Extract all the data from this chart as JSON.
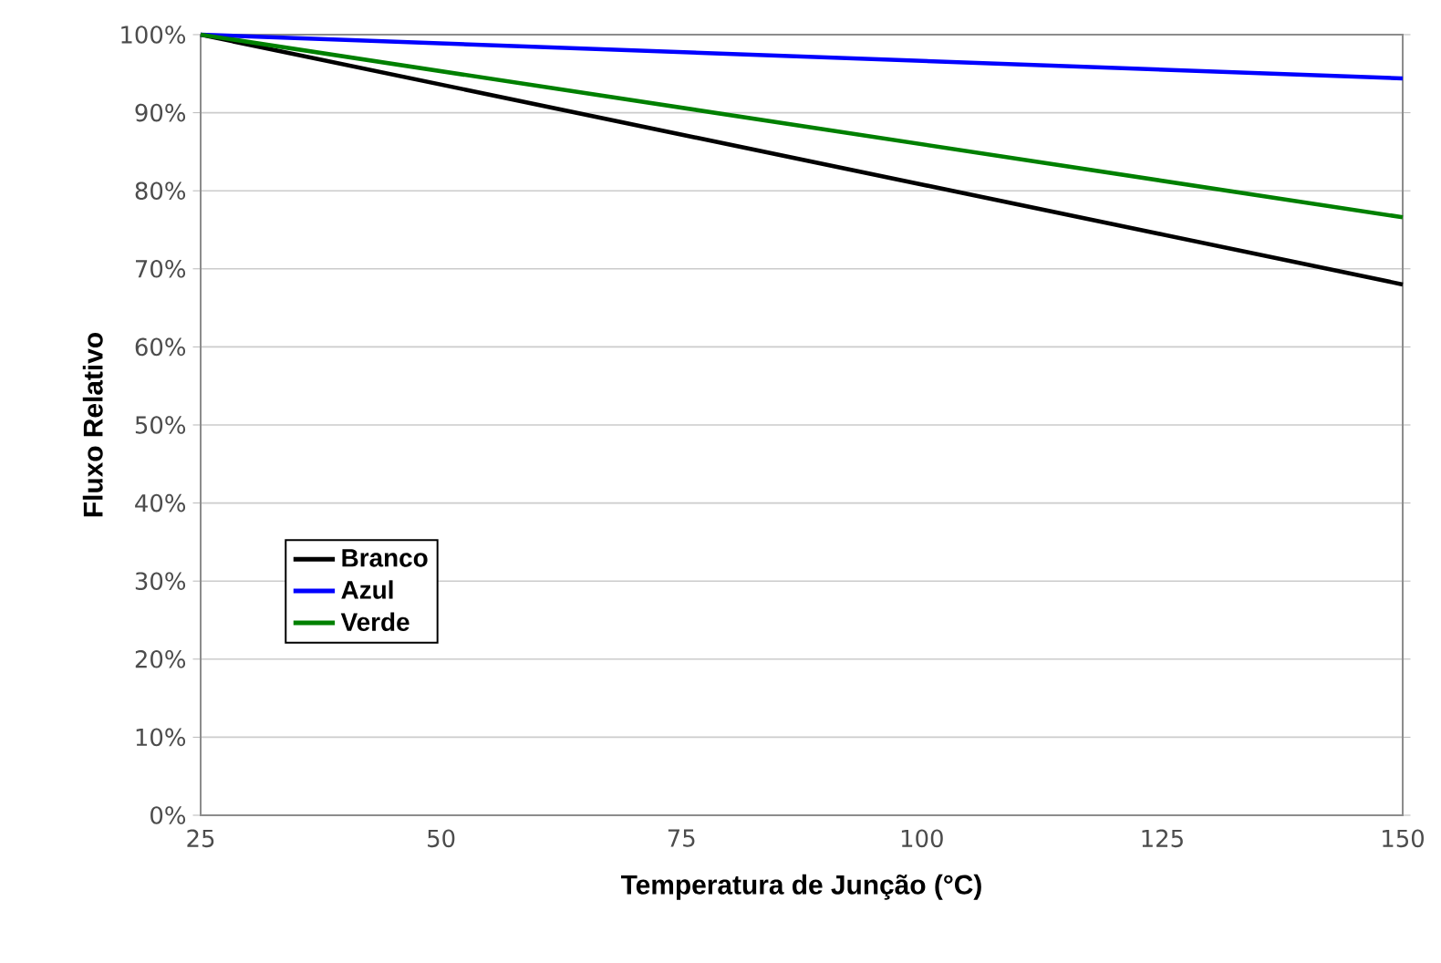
{
  "chart_data": {
    "type": "line",
    "xlabel": "Temperatura de Junção (°C)",
    "ylabel": "Fluxo Relativo",
    "x": [
      25,
      150
    ],
    "series": [
      {
        "name": "Branco",
        "color": "#000000",
        "values": [
          100,
          68
        ]
      },
      {
        "name": "Azul",
        "color": "#0000ff",
        "values": [
          100,
          94.4
        ]
      },
      {
        "name": "Verde",
        "color": "#008000",
        "values": [
          100,
          76.6
        ]
      }
    ],
    "xlim": [
      25,
      150
    ],
    "xticks": [
      25,
      50,
      75,
      100,
      125,
      150
    ],
    "ylim": [
      0,
      100
    ],
    "yticks": [
      {
        "value": 0,
        "label": "0%"
      },
      {
        "value": 10,
        "label": "10%"
      },
      {
        "value": 20,
        "label": "20%"
      },
      {
        "value": 30,
        "label": "30%"
      },
      {
        "value": 40,
        "label": "40%"
      },
      {
        "value": 50,
        "label": "50%"
      },
      {
        "value": 60,
        "label": "60%"
      },
      {
        "value": 70,
        "label": "70%"
      },
      {
        "value": 80,
        "label": "80%"
      },
      {
        "value": 90,
        "label": "90%"
      },
      {
        "value": 100,
        "label": "100%"
      }
    ],
    "grid": "y",
    "legend": "center left",
    "marker": "none",
    "line_style": "solid"
  }
}
